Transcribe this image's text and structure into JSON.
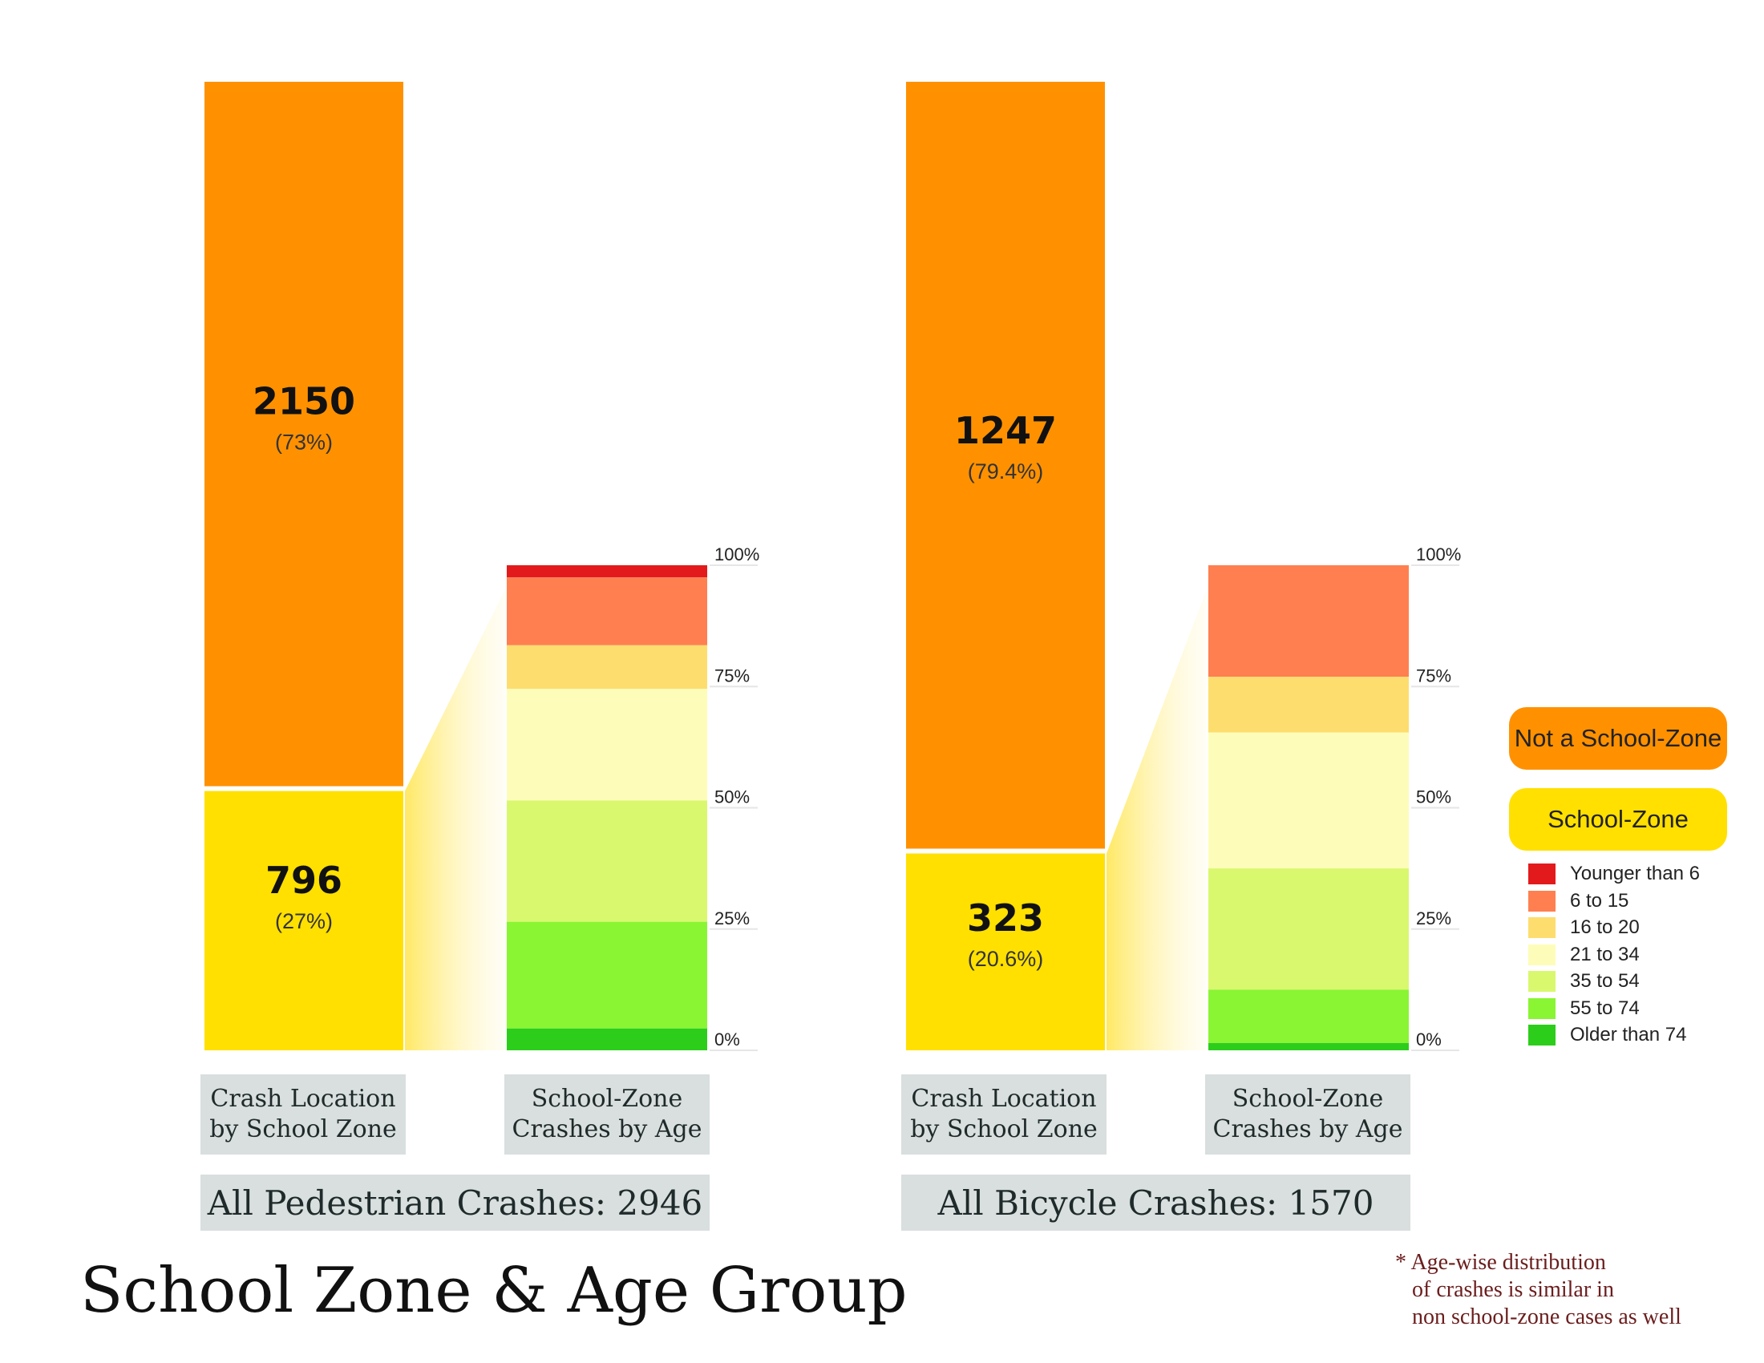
{
  "title": "School Zone & Age Group",
  "footnote": "* Age-wise distribution\n   of crashes is similar in\n   non school-zone cases as well",
  "colors": {
    "not_school_zone": "#ff9100",
    "school_zone": "#ffe000",
    "age": [
      "#e31a1c",
      "#ff7f50",
      "#fddd6e",
      "#fdfdb9",
      "#d9f86e",
      "#8af533",
      "#2cce1b"
    ]
  },
  "legend": {
    "not_school_zone": "Not a School-Zone",
    "school_zone": "School-Zone",
    "age_groups": [
      "Younger than 6",
      "6 to 15",
      "16 to 20",
      "21 to 34",
      "35 to 54",
      "55 to 74",
      "Older than 74"
    ]
  },
  "panels": [
    {
      "total_label": "All Pedestrian Crashes:  2946",
      "location_label": [
        "Crash Location",
        "by School Zone"
      ],
      "age_label": [
        "School-Zone",
        "Crashes by Age"
      ]
    },
    {
      "total_label": "All Bicycle Crashes:  1570",
      "location_label": [
        "Crash Location",
        "by School Zone"
      ],
      "age_label": [
        "School-Zone",
        "Crashes by Age"
      ]
    }
  ],
  "chart_data": [
    {
      "type": "bar",
      "series_name": "Crash Location by School Zone",
      "categories": [
        "Not a School-Zone",
        "School-Zone"
      ],
      "values": [
        2150,
        796
      ],
      "labels": [
        "2150",
        "796"
      ],
      "percent_labels": [
        "(73%)",
        "(27%)"
      ],
      "age_distribution": {
        "categories": [
          "Younger than 6",
          "6 to 15",
          "16 to 20",
          "21 to 34",
          "35 to 54",
          "55 to 74",
          "Older than 74"
        ],
        "values_percent": [
          2.5,
          14,
          9,
          23,
          25,
          22,
          4.5
        ]
      },
      "yticks": [
        "0%",
        "25%",
        "50%",
        "75%",
        "100%"
      ]
    },
    {
      "type": "bar",
      "series_name": "Crash Location by School Zone",
      "categories": [
        "Not a School-Zone",
        "School-Zone"
      ],
      "values": [
        1247,
        323
      ],
      "labels": [
        "1247",
        "323"
      ],
      "percent_labels": [
        "(79.4%)",
        "(20.6%)"
      ],
      "age_distribution": {
        "categories": [
          "Younger than 6",
          "6 to 15",
          "16 to 20",
          "21 to 34",
          "35 to 54",
          "55 to 74",
          "Older than 74"
        ],
        "values_percent": [
          0,
          23,
          11.5,
          28,
          25,
          11,
          1.5
        ]
      },
      "yticks": [
        "0%",
        "25%",
        "50%",
        "75%",
        "100%"
      ]
    }
  ]
}
